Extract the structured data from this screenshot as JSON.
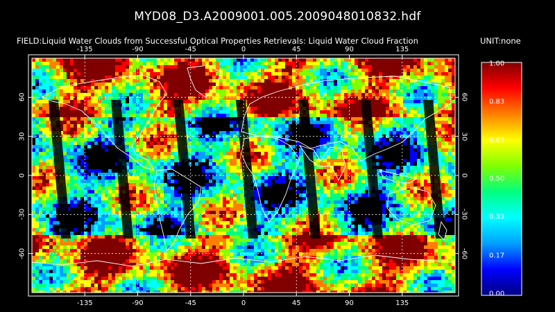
{
  "title": "MYD08_D3.A2009001.005.2009048010832.hdf",
  "field_label": "FIELD:Liquid Water Clouds from Successful Optical Properties Retrievals:  Liquid Water Cloud Fraction",
  "unit_label": "UNIT:none",
  "map": {
    "lon_ticks": [
      "-135",
      "-90",
      "-45",
      "0",
      "45",
      "90",
      "135"
    ],
    "lat_ticks": [
      "60",
      "30",
      "0",
      "-30",
      "-60"
    ]
  },
  "colorbar": {
    "labels": [
      "1.00",
      "0.83",
      "0.67",
      "0.50",
      "0.33",
      "0.17",
      "0.00"
    ],
    "colors": [
      "#000080",
      "#0000ff",
      "#00a0ff",
      "#00ffff",
      "#00ff80",
      "#80ff00",
      "#ffff00",
      "#ff8000",
      "#ff0000",
      "#800000"
    ]
  }
}
